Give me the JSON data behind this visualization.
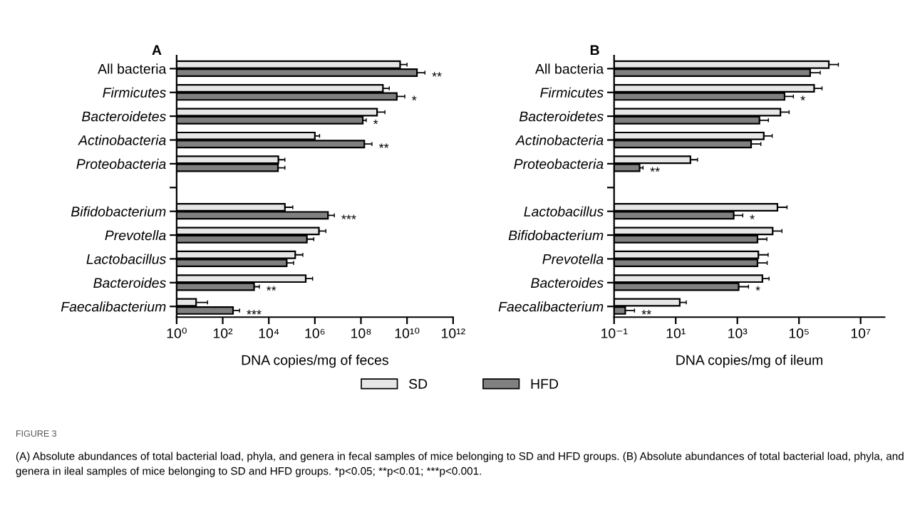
{
  "chart_data": [
    {
      "type": "bar",
      "orientation": "horizontal",
      "title": "A",
      "xlabel": "DNA copies/mg of feces",
      "log": "x",
      "legend": "bottom",
      "categories": [
        "All bacteria",
        "Firmicutes",
        "Bacteroidetes",
        "Actinobacteria",
        "Proteobacteria",
        null,
        "Bifidobacterium",
        "Prevotella",
        "Lactobacillus",
        "Bacteroides",
        "Faecalibacterium"
      ],
      "xlim": [
        1,
        1000000000000.0
      ],
      "xticks": [
        {
          "value": 1,
          "label": "10⁰"
        },
        {
          "value": 100,
          "label": "10²"
        },
        {
          "value": 10000.0,
          "label": "10⁴"
        },
        {
          "value": 1000000.0,
          "label": "10⁶"
        },
        {
          "value": 100000000.0,
          "label": "10⁸"
        },
        {
          "value": 10000000000.0,
          "label": "10¹⁰"
        },
        {
          "value": 1000000000000.0,
          "label": "10¹²"
        }
      ],
      "series": [
        {
          "name": "SD",
          "color": "#e6e6e6",
          "values": [
            5000000000.0,
            900000000.0,
            500000000.0,
            1000000.0,
            26000.0,
            null,
            50000.0,
            1500000.0,
            140000.0,
            400000.0,
            7
          ],
          "errors": [
            [
              5000000000.0,
              10000000000.0
            ],
            [
              900000000.0,
              1700000000.0
            ],
            [
              500000000.0,
              1100000000.0
            ],
            [
              1000000.0,
              1600000.0
            ],
            [
              26000.0,
              50000.0
            ],
            null,
            [
              50000.0,
              110000.0
            ],
            [
              1500000.0,
              3000000.0
            ],
            [
              140000.0,
              300000.0
            ],
            [
              400000.0,
              800000.0
            ],
            [
              7,
              22
            ]
          ]
        },
        {
          "name": "HFD",
          "color": "#808080",
          "values": [
            27000000000.0,
            3600000000.0,
            120000000.0,
            140000000.0,
            25000.0,
            null,
            3700000.0,
            450000.0,
            60000.0,
            2300.0,
            280
          ],
          "errors": [
            [
              27000000000.0,
              60000000000.0
            ],
            [
              3600000000.0,
              8000000000.0
            ],
            [
              120000000.0,
              170000000.0
            ],
            [
              140000000.0,
              300000000.0
            ],
            [
              25000.0,
              50000.0
            ],
            null,
            [
              3700000.0,
              7000000.0
            ],
            [
              450000.0,
              900000.0
            ],
            [
              60000.0,
              120000.0
            ],
            [
              2300.0,
              3900.0
            ],
            [
              280,
              540
            ]
          ]
        }
      ],
      "annotations": [
        {
          "text": "**",
          "x": 60000000000.0,
          "y": "All bacteria"
        },
        {
          "text": "*",
          "x": 8000000000.0,
          "y": "Firmicutes"
        },
        {
          "text": "*",
          "x": 170000000.0,
          "y": "Bacteroidetes"
        },
        {
          "text": "**",
          "x": 300000000.0,
          "y": "Actinobacteria"
        },
        {
          "text": "***",
          "x": 7000000.0,
          "y": "Bifidobacterium"
        },
        {
          "text": "**",
          "x": 3900.0,
          "y": "Bacteroides"
        },
        {
          "text": "***",
          "x": 540,
          "y": "Faecalibacterium"
        },
        "FIGURE 3",
        "(A) Absolute abundances of total bacterial load, phyla, and genera in fecal samples of mice belonging to SD and HFD groups. (B) Absolute abundances of total bacterial load, phyla, and genera in ileal samples of mice belonging to SD and HFD groups. *p<0.05; **p<0.01; ***p<0.001."
      ]
    },
    {
      "type": "bar",
      "orientation": "horizontal",
      "title": "B",
      "xlabel": "DNA copies/mg of ileum",
      "log": "x",
      "legend": "bottom",
      "categories": [
        "All bacteria",
        "Firmicutes",
        "Bacteroidetes",
        "Actinobacteria",
        "Proteobacteria",
        null,
        "Lactobacillus",
        "Bifidobacterium",
        "Prevotella",
        "Bacteroides",
        "Faecalibacterium"
      ],
      "xlim": [
        0.1,
        60000000.0
      ],
      "xticks": [
        {
          "value": 0.1,
          "label": "10⁻¹"
        },
        {
          "value": 10,
          "label": "10¹"
        },
        {
          "value": 1000,
          "label": "10³"
        },
        {
          "value": 100000.0,
          "label": "10⁵"
        },
        {
          "value": 10000000.0,
          "label": "10⁷"
        }
      ],
      "series": [
        {
          "name": "SD",
          "color": "#e6e6e6",
          "values": [
            930000.0,
            310000.0,
            25000.0,
            7200.0,
            30,
            null,
            20000.0,
            14000.0,
            4800.0,
            6500.0,
            13.5
          ],
          "errors": [
            [
              930000.0,
              1900000.0
            ],
            [
              310000.0,
              560000.0
            ],
            [
              25000.0,
              48000.0
            ],
            [
              7200.0,
              13500.0
            ],
            [
              30,
              51
            ],
            null,
            [
              20000.0,
              41000.0
            ],
            [
              14000.0,
              28000.0
            ],
            [
              4800.0,
              10000.0
            ],
            [
              6500.0,
              10700.0
            ],
            [
              13.5,
              22
            ]
          ]
        },
        {
          "name": "HFD",
          "color": "#808080",
          "values": [
            230000.0,
            34000.0,
            5200.0,
            2800.0,
            0.67,
            null,
            760,
            4500.0,
            4500.0,
            1100.0,
            0.23
          ],
          "errors": [
            [
              230000.0,
              490000.0
            ],
            [
              34000.0,
              66000.0
            ],
            [
              5200.0,
              10200.0
            ],
            [
              2800.0,
              5800.0
            ],
            [
              0.67,
              0.87
            ],
            null,
            [
              760,
              1500.0
            ],
            [
              4500.0,
              9100.0
            ],
            [
              4500.0,
              9300.0
            ],
            [
              1100.0,
              2300.0
            ],
            [
              0.23,
              0.46
            ]
          ]
        }
      ],
      "annotations": [
        {
          "text": "*",
          "x": 66000.0,
          "y": "Firmicutes"
        },
        {
          "text": "**",
          "x": 0.87,
          "y": "Proteobacteria"
        },
        {
          "text": "*",
          "x": 1500.0,
          "y": "Lactobacillus"
        },
        {
          "text": "*",
          "x": 2300.0,
          "y": "Bacteroides"
        },
        {
          "text": "**",
          "x": 0.46,
          "y": "Faecalibacterium"
        }
      ]
    }
  ]
}
